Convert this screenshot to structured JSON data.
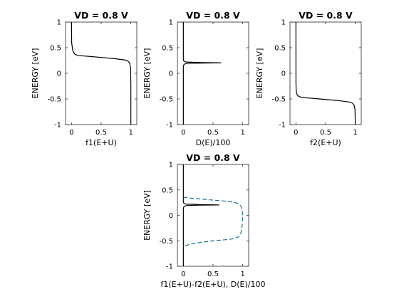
{
  "chart_data": [
    {
      "type": "line",
      "title": "VD = 0.8 V",
      "xlabel": "f1(E+U)",
      "ylabel": "ENERGY  [eV]",
      "xlim": [
        -0.1,
        1.1
      ],
      "ylim": [
        -1,
        1
      ],
      "xticks": [
        "0",
        "0.5",
        "1"
      ],
      "yticks": [
        "-1",
        "-0.5",
        "0",
        "0.5",
        "1"
      ],
      "grid": false,
      "series": [
        {
          "color": "#000000",
          "dash": "solid",
          "points": [
            [
              0,
              1.0
            ],
            [
              0.003,
              0.6
            ],
            [
              0.02,
              0.45
            ],
            [
              0.05,
              0.38
            ],
            [
              0.1,
              0.35
            ],
            [
              0.3,
              0.33
            ],
            [
              0.5,
              0.31
            ],
            [
              0.7,
              0.29
            ],
            [
              0.9,
              0.26
            ],
            [
              0.95,
              0.24
            ],
            [
              0.98,
              0.2
            ],
            [
              0.995,
              0.1
            ],
            [
              1.0,
              -0.2
            ],
            [
              1.0,
              -1.0
            ]
          ]
        }
      ]
    },
    {
      "type": "line",
      "title": "VD = 0.8 V",
      "xlabel": "D(E)/100",
      "ylabel": "ENERGY  [eV]",
      "xlim": [
        -0.1,
        1.1
      ],
      "ylim": [
        -1,
        1
      ],
      "xticks": [
        "0",
        "0.5",
        "1"
      ],
      "yticks": [
        "-1",
        "-0.5",
        "0",
        "0.5",
        "1"
      ],
      "grid": false,
      "series": [
        {
          "color": "#000000",
          "dash": "solid",
          "points": [
            [
              0,
              1.0
            ],
            [
              0,
              0.25
            ],
            [
              0.02,
              0.23
            ],
            [
              0.05,
              0.22
            ],
            [
              0.3,
              0.21
            ],
            [
              0.63,
              0.205
            ],
            [
              0.3,
              0.2
            ],
            [
              0.06,
              0.195
            ],
            [
              0.03,
              0.185
            ],
            [
              0.015,
              0.175
            ],
            [
              0.005,
              0.16
            ],
            [
              0,
              0.13
            ],
            [
              0,
              -1.0
            ]
          ]
        }
      ]
    },
    {
      "type": "line",
      "title": "VD = 0.8 V",
      "xlabel": "f2(E+U)",
      "ylabel": "ENERGY  [eV]",
      "xlim": [
        -0.1,
        1.1
      ],
      "ylim": [
        -1,
        1
      ],
      "xticks": [
        "0",
        "0.5",
        "1"
      ],
      "yticks": [
        "-1",
        "-0.5",
        "0",
        "0.5",
        "1"
      ],
      "grid": false,
      "series": [
        {
          "color": "#000000",
          "dash": "solid",
          "points": [
            [
              0,
              1.0
            ],
            [
              0.001,
              -0.2
            ],
            [
              0.005,
              -0.35
            ],
            [
              0.02,
              -0.42
            ],
            [
              0.05,
              -0.45
            ],
            [
              0.1,
              -0.47
            ],
            [
              0.3,
              -0.49
            ],
            [
              0.5,
              -0.51
            ],
            [
              0.7,
              -0.53
            ],
            [
              0.9,
              -0.56
            ],
            [
              0.95,
              -0.58
            ],
            [
              0.98,
              -0.62
            ],
            [
              0.995,
              -0.7
            ],
            [
              1.0,
              -1.0
            ]
          ]
        }
      ]
    },
    {
      "type": "line",
      "title": "VD = 0.8 V",
      "xlabel": "f1(E+U)-f2(E+U), D(E)/100",
      "ylabel": "ENERGY  [eV]",
      "xlim": [
        -0.1,
        1.1
      ],
      "ylim": [
        -1,
        1
      ],
      "xticks": [
        "0",
        "0.5",
        "1"
      ],
      "yticks": [
        "-1",
        "-0.5",
        "0",
        "0.5",
        "1"
      ],
      "grid": false,
      "series": [
        {
          "color": "#000000",
          "dash": "solid",
          "points": [
            [
              0,
              1.0
            ],
            [
              0,
              0.25
            ],
            [
              0.02,
              0.23
            ],
            [
              0.05,
              0.22
            ],
            [
              0.3,
              0.21
            ],
            [
              0.6,
              0.205
            ],
            [
              0.3,
              0.2
            ],
            [
              0.06,
              0.195
            ],
            [
              0.03,
              0.185
            ],
            [
              0.015,
              0.175
            ],
            [
              0.005,
              0.16
            ],
            [
              0,
              0.13
            ],
            [
              0,
              -1.0
            ]
          ]
        },
        {
          "color": "#1f6e8c",
          "dash": "dashed",
          "points": [
            [
              0,
              0.36
            ],
            [
              0.05,
              0.35
            ],
            [
              0.1,
              0.34
            ],
            [
              0.3,
              0.32
            ],
            [
              0.5,
              0.3
            ],
            [
              0.7,
              0.28
            ],
            [
              0.85,
              0.26
            ],
            [
              0.93,
              0.23
            ],
            [
              0.97,
              0.18
            ],
            [
              0.99,
              0.1
            ],
            [
              1.0,
              0.0
            ],
            [
              0.99,
              -0.2
            ],
            [
              0.97,
              -0.35
            ],
            [
              0.93,
              -0.42
            ],
            [
              0.85,
              -0.46
            ],
            [
              0.7,
              -0.48
            ],
            [
              0.5,
              -0.5
            ],
            [
              0.3,
              -0.53
            ],
            [
              0.1,
              -0.57
            ],
            [
              0.05,
              -0.59
            ],
            [
              0,
              -0.62
            ]
          ]
        }
      ]
    }
  ]
}
